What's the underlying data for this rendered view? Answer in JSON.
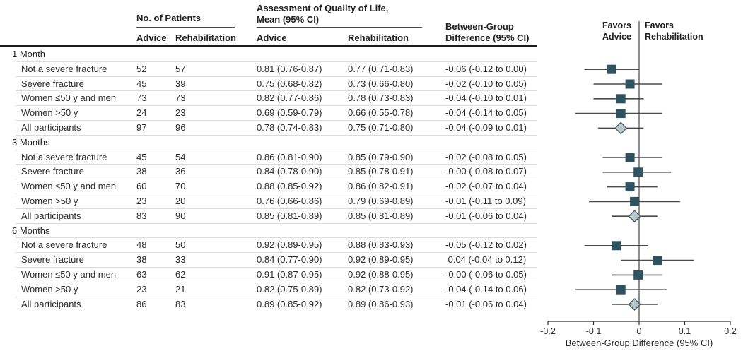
{
  "colors": {
    "text": "#2b2b2b",
    "thick_rule": "#1c1c1c",
    "row_divider": "#dcdcdc",
    "square_marker": "#2f5260",
    "diamond_fill": "#bcc9cc",
    "diamond_stroke": "#3f5d66",
    "ci_line": "#4a4a4a",
    "zero_line": "#6b6b6b",
    "axis": "#2e2e2e"
  },
  "table": {
    "headers": {
      "patients": "No. of Patients",
      "qol_line1": "Assessment of Quality of Life,",
      "qol_line2": "Mean (95% CI)",
      "diff_line1": "Between-Group",
      "diff_line2": "Difference (95% CI)",
      "sub_advice_n": "Advice",
      "sub_rehab_n": "Rehabilitation",
      "sub_advice_qol": "Advice",
      "sub_rehab_qol": "Rehabilitation"
    },
    "sections": [
      {
        "label": "1 Month",
        "rows": [
          {
            "label": "Not a severe fracture",
            "advice_n": "52",
            "rehab_n": "57",
            "qol_advice": "0.81 (0.76-0.87)",
            "qol_rehab": "0.77 (0.71-0.83)",
            "diff": "-0.06 (-0.12 to 0.00)"
          },
          {
            "label": "Severe fracture",
            "advice_n": "45",
            "rehab_n": "39",
            "qol_advice": "0.75 (0.68-0.82)",
            "qol_rehab": "0.73 (0.66-0.80)",
            "diff": "-0.02 (-0.10 to 0.05)"
          },
          {
            "label": "Women ≤50 y and men",
            "advice_n": "73",
            "rehab_n": "73",
            "qol_advice": "0.82 (0.77-0.86)",
            "qol_rehab": "0.78 (0.73-0.83)",
            "diff": "-0.04 (-0.10 to 0.01)"
          },
          {
            "label": "Women >50 y",
            "advice_n": "24",
            "rehab_n": "23",
            "qol_advice": "0.69 (0.59-0.79)",
            "qol_rehab": "0.66 (0.55-0.78)",
            "diff": "-0.04 (-0.14 to 0.05)"
          },
          {
            "label": "All participants",
            "advice_n": "97",
            "rehab_n": "96",
            "qol_advice": "0.78 (0.74-0.83)",
            "qol_rehab": "0.75 (0.71-0.80)",
            "diff": "-0.04 (-0.09 to 0.01)"
          }
        ]
      },
      {
        "label": "3 Months",
        "rows": [
          {
            "label": "Not a severe fracture",
            "advice_n": "45",
            "rehab_n": "54",
            "qol_advice": "0.86 (0.81-0.90)",
            "qol_rehab": "0.85 (0.79-0.90)",
            "diff": "-0.02 (-0.08 to 0.05)"
          },
          {
            "label": "Severe fracture",
            "advice_n": "38",
            "rehab_n": "36",
            "qol_advice": "0.84 (0.78-0.90)",
            "qol_rehab": "0.85 (0.78-0.91)",
            "diff": "-0.00 (-0.08 to 0.07)"
          },
          {
            "label": "Women ≤50 y and men",
            "advice_n": "60",
            "rehab_n": "70",
            "qol_advice": "0.88 (0.85-0.92)",
            "qol_rehab": "0.86 (0.82-0.91)",
            "diff": "-0.02 (-0.07 to 0.04)"
          },
          {
            "label": "Women >50 y",
            "advice_n": "23",
            "rehab_n": "20",
            "qol_advice": "0.76 (0.66-0.86)",
            "qol_rehab": "0.79 (0.69-0.89)",
            "diff": "-0.01 (-0.11 to 0.09)"
          },
          {
            "label": "All participants",
            "advice_n": "83",
            "rehab_n": "90",
            "qol_advice": "0.85 (0.81-0.89)",
            "qol_rehab": "0.85 (0.81-0.89)",
            "diff": "-0.01 (-0.06 to 0.04)"
          }
        ]
      },
      {
        "label": "6 Months",
        "rows": [
          {
            "label": "Not a severe fracture",
            "advice_n": "48",
            "rehab_n": "50",
            "qol_advice": "0.92 (0.89-0.95)",
            "qol_rehab": "0.88 (0.83-0.93)",
            "diff": "-0.05 (-0.12 to 0.02)"
          },
          {
            "label": "Severe fracture",
            "advice_n": "38",
            "rehab_n": "33",
            "qol_advice": "0.84 (0.77-0.90)",
            "qol_rehab": "0.92 (0.89-0.95)",
            "diff": " 0.04 (-0.04 to 0.12)"
          },
          {
            "label": "Women ≤50 y and men",
            "advice_n": "63",
            "rehab_n": "62",
            "qol_advice": "0.91 (0.87-0.95)",
            "qol_rehab": "0.92 (0.88-0.95)",
            "diff": "-0.00 (-0.06 to 0.05)"
          },
          {
            "label": "Women >50 y",
            "advice_n": "23",
            "rehab_n": "21",
            "qol_advice": "0.82 (0.75-0.89)",
            "qol_rehab": "0.82 (0.73-0.92)",
            "diff": "-0.04 (-0.14 to 0.06)"
          },
          {
            "label": "All participants",
            "advice_n": "86",
            "rehab_n": "83",
            "qol_advice": "0.89 (0.85-0.92)",
            "qol_rehab": "0.89 (0.86-0.93)",
            "diff": "-0.01 (-0.06 to 0.04)"
          }
        ]
      }
    ]
  },
  "plot": {
    "favors_left_line1": "Favors",
    "favors_left_line2": "Advice",
    "favors_right_line1": "Favors",
    "favors_right_line2": "Rehabilitation",
    "axis_label": "Between-Group Difference (95% CI)",
    "ticks": [
      "-0.2",
      "-0.1",
      "0",
      "0.1",
      "0.2"
    ]
  },
  "chart_data": {
    "type": "scatter",
    "subtype": "forest-plot",
    "title": "",
    "xlabel": "Between-Group Difference (95% CI)",
    "xlim": [
      -0.2,
      0.2
    ],
    "xticks": [
      -0.2,
      -0.1,
      0,
      0.1,
      0.2
    ],
    "zero_reference_line": 0,
    "grid": false,
    "annotations": [
      "Favors Advice",
      "Favors Rehabilitation"
    ],
    "groups": [
      {
        "label": "1 Month",
        "points": [
          {
            "label": "Not a severe fracture",
            "estimate": -0.06,
            "ci": [
              -0.12,
              0.0
            ],
            "marker": "square"
          },
          {
            "label": "Severe fracture",
            "estimate": -0.02,
            "ci": [
              -0.1,
              0.05
            ],
            "marker": "square"
          },
          {
            "label": "Women ≤50 y and men",
            "estimate": -0.04,
            "ci": [
              -0.1,
              0.01
            ],
            "marker": "square"
          },
          {
            "label": "Women >50 y",
            "estimate": -0.04,
            "ci": [
              -0.14,
              0.05
            ],
            "marker": "square"
          },
          {
            "label": "All participants",
            "estimate": -0.04,
            "ci": [
              -0.09,
              0.01
            ],
            "marker": "diamond"
          }
        ]
      },
      {
        "label": "3 Months",
        "points": [
          {
            "label": "Not a severe fracture",
            "estimate": -0.02,
            "ci": [
              -0.08,
              0.05
            ],
            "marker": "square"
          },
          {
            "label": "Severe fracture",
            "estimate": -0.002,
            "ci": [
              -0.08,
              0.07
            ],
            "marker": "square"
          },
          {
            "label": "Women ≤50 y and men",
            "estimate": -0.02,
            "ci": [
              -0.07,
              0.04
            ],
            "marker": "square"
          },
          {
            "label": "Women >50 y",
            "estimate": -0.01,
            "ci": [
              -0.11,
              0.09
            ],
            "marker": "square"
          },
          {
            "label": "All participants",
            "estimate": -0.01,
            "ci": [
              -0.06,
              0.04
            ],
            "marker": "diamond"
          }
        ]
      },
      {
        "label": "6 Months",
        "points": [
          {
            "label": "Not a severe fracture",
            "estimate": -0.05,
            "ci": [
              -0.12,
              0.02
            ],
            "marker": "square"
          },
          {
            "label": "Severe fracture",
            "estimate": 0.04,
            "ci": [
              -0.04,
              0.12
            ],
            "marker": "square"
          },
          {
            "label": "Women ≤50 y and men",
            "estimate": -0.002,
            "ci": [
              -0.06,
              0.05
            ],
            "marker": "square"
          },
          {
            "label": "Women >50 y",
            "estimate": -0.04,
            "ci": [
              -0.14,
              0.06
            ],
            "marker": "square"
          },
          {
            "label": "All participants",
            "estimate": -0.01,
            "ci": [
              -0.06,
              0.04
            ],
            "marker": "diamond"
          }
        ]
      }
    ]
  }
}
